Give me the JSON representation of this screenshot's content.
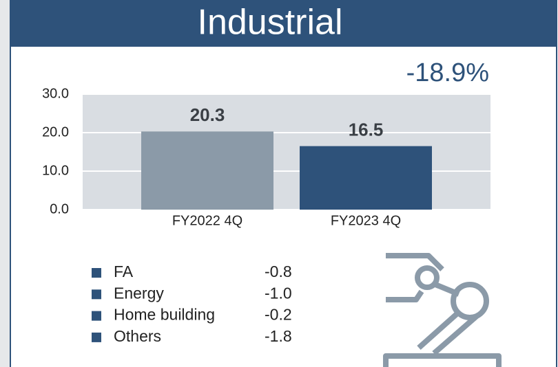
{
  "chart_data": {
    "type": "bar",
    "title": "Industrial",
    "annotation": "-18.9%",
    "categories": [
      "FY2022 4Q",
      "FY2023 4Q"
    ],
    "values": [
      20.3,
      16.5
    ],
    "colors": [
      "#8b9aa8",
      "#2e527a"
    ],
    "ylim": [
      0,
      30
    ],
    "yticks": [
      {
        "value": 0,
        "label": "0.0"
      },
      {
        "value": 10,
        "label": "10.0"
      },
      {
        "value": 20,
        "label": "20.0"
      },
      {
        "value": 30,
        "label": "30.0"
      }
    ],
    "grid": true,
    "breakdown": [
      {
        "name": "FA",
        "value": "-0.8"
      },
      {
        "name": "Energy",
        "value": "-1.0"
      },
      {
        "name": "Home building",
        "value": "-0.2"
      },
      {
        "name": "Others",
        "value": "-1.8"
      }
    ]
  }
}
